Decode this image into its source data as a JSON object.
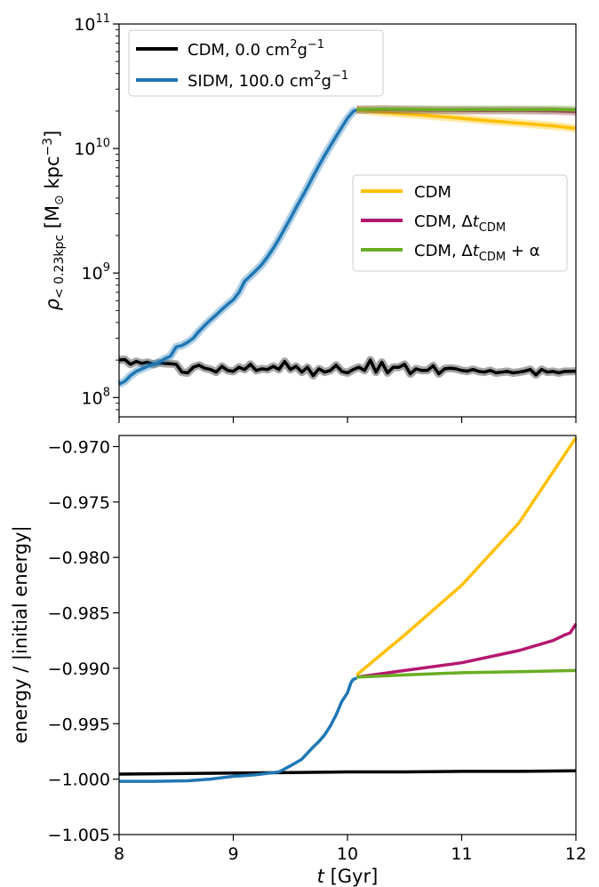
{
  "chart_data": [
    {
      "type": "line",
      "yscale": "log",
      "xlim": [
        8,
        12
      ],
      "ylim": [
        70000000,
        100000000000
      ],
      "xlabel": "",
      "ylabel": "ρ < 0.23kpc [M⊙ kpc−3]",
      "ylabel_parts": {
        "rho": "ρ",
        "sub": "< 0.23kpc",
        "unit_open": " [M",
        "sun": "⊙",
        "unit_mid": " kpc",
        "sup": "−3",
        "unit_close": "]"
      },
      "yticks": [
        {
          "base": "10",
          "exp": "8",
          "value": 100000000
        },
        {
          "base": "10",
          "exp": "9",
          "value": 1000000000
        },
        {
          "base": "10",
          "exp": "10",
          "value": 10000000000
        },
        {
          "base": "10",
          "exp": "11",
          "value": 100000000000
        }
      ],
      "legend_top_left": [
        {
          "name": "CDM, 0.0 cm²g⁻¹",
          "parts": {
            "main": "CDM, 0.0 cm",
            "sup1": "2",
            "mid": "g",
            "sup2": "−1"
          },
          "color": "#000000"
        },
        {
          "name": "SIDM, 100.0 cm²g⁻¹",
          "parts": {
            "main": "SIDM, 100.0 cm",
            "sup1": "2",
            "mid": "g",
            "sup2": "−1"
          },
          "color": "#1f77b4"
        }
      ],
      "legend_center_right": [
        {
          "name": "CDM",
          "parts": {
            "main": "CDM",
            "delta": "",
            "sub": "",
            "tail": ""
          },
          "color": "#ffc000"
        },
        {
          "name": "CDM, ΔtCDM",
          "parts": {
            "main": "CDM, Δ",
            "delta": "t",
            "sub": "CDM",
            "tail": ""
          },
          "color": "#b5176f"
        },
        {
          "name": "CDM, ΔtCDM + α",
          "parts": {
            "main": "CDM, Δ",
            "delta": "t",
            "sub": "CDM",
            "tail": " + α"
          },
          "color": "#6aad24"
        }
      ],
      "series": [
        {
          "name": "CDM, 0.0 cm²g⁻¹",
          "color": "#000000",
          "x": [
            8.0,
            8.05,
            8.1,
            8.15,
            8.2,
            8.25,
            8.3,
            8.35,
            8.4,
            8.45,
            8.5,
            8.55,
            8.6,
            8.65,
            8.7,
            8.75,
            8.8,
            8.85,
            8.9,
            8.95,
            9.0,
            9.05,
            9.1,
            9.15,
            9.2,
            9.25,
            9.3,
            9.35,
            9.4,
            9.45,
            9.5,
            9.55,
            9.6,
            9.65,
            9.7,
            9.75,
            9.8,
            9.85,
            9.9,
            9.95,
            10.0,
            10.05,
            10.1,
            10.15,
            10.2,
            10.25,
            10.3,
            10.35,
            10.4,
            10.45,
            10.5,
            10.55,
            10.6,
            10.65,
            10.7,
            10.75,
            10.8,
            10.85,
            10.9,
            10.95,
            11.0,
            11.05,
            11.1,
            11.15,
            11.2,
            11.25,
            11.3,
            11.35,
            11.4,
            11.45,
            11.5,
            11.55,
            11.6,
            11.65,
            11.7,
            11.75,
            11.8,
            11.85,
            11.9,
            11.95,
            12.0
          ],
          "y": [
            200000000,
            202000000,
            185000000,
            195000000,
            188000000,
            192000000,
            185000000,
            190000000,
            188000000,
            187000000,
            185000000,
            160000000,
            158000000,
            175000000,
            182000000,
            172000000,
            168000000,
            160000000,
            178000000,
            165000000,
            162000000,
            175000000,
            168000000,
            185000000,
            165000000,
            170000000,
            168000000,
            178000000,
            168000000,
            195000000,
            168000000,
            178000000,
            160000000,
            175000000,
            150000000,
            170000000,
            160000000,
            165000000,
            182000000,
            162000000,
            158000000,
            168000000,
            175000000,
            165000000,
            200000000,
            160000000,
            192000000,
            158000000,
            175000000,
            175000000,
            185000000,
            155000000,
            170000000,
            165000000,
            165000000,
            180000000,
            155000000,
            170000000,
            172000000,
            170000000,
            165000000,
            163000000,
            168000000,
            162000000,
            160000000,
            165000000,
            158000000,
            160000000,
            162000000,
            158000000,
            160000000,
            163000000,
            168000000,
            152000000,
            168000000,
            160000000,
            162000000,
            158000000,
            162000000,
            162000000,
            163000000
          ]
        },
        {
          "name": "SIDM, 100.0 cm²g⁻¹",
          "color": "#1f77b4",
          "x": [
            8.0,
            8.05,
            8.1,
            8.15,
            8.2,
            8.25,
            8.3,
            8.35,
            8.4,
            8.45,
            8.5,
            8.55,
            8.6,
            8.65,
            8.7,
            8.75,
            8.8,
            8.85,
            8.9,
            8.95,
            9.0,
            9.05,
            9.1,
            9.15,
            9.2,
            9.25,
            9.3,
            9.35,
            9.4,
            9.45,
            9.5,
            9.55,
            9.6,
            9.65,
            9.7,
            9.75,
            9.8,
            9.85,
            9.9,
            9.95,
            10.0,
            10.05,
            10.08
          ],
          "y": [
            128000000,
            135000000,
            150000000,
            162000000,
            170000000,
            178000000,
            185000000,
            192000000,
            205000000,
            215000000,
            255000000,
            262000000,
            278000000,
            300000000,
            340000000,
            380000000,
            420000000,
            460000000,
            510000000,
            560000000,
            610000000,
            700000000,
            860000000,
            950000000,
            1050000000,
            1170000000,
            1350000000,
            1580000000,
            1880000000,
            2270000000,
            2750000000,
            3350000000,
            4050000000,
            4900000000,
            6000000000,
            7300000000,
            8800000000,
            10500000000,
            12500000000,
            14800000000,
            17500000000,
            19800000000,
            20500000000
          ]
        },
        {
          "name": "CDM",
          "color": "#ffc000",
          "x": [
            10.08,
            10.3,
            10.6,
            10.9,
            11.2,
            11.5,
            11.8,
            12.0
          ],
          "y": [
            20500000000,
            19500000000,
            18700000000,
            17800000000,
            16800000000,
            16000000000,
            15200000000,
            14500000000
          ]
        },
        {
          "name": "CDM, ΔtCDM",
          "color": "#b5176f",
          "x": [
            10.08,
            10.3,
            10.6,
            10.9,
            11.2,
            11.5,
            11.8,
            12.0
          ],
          "y": [
            20500000000,
            20600000000,
            20400000000,
            20300000000,
            20200000000,
            20300000000,
            20100000000,
            19800000000
          ]
        },
        {
          "name": "CDM, ΔtCDM + α",
          "color": "#6aad24",
          "x": [
            10.08,
            10.3,
            10.6,
            10.9,
            11.2,
            11.5,
            11.8,
            12.0
          ],
          "y": [
            20500000000,
            20700000000,
            20600000000,
            20500000000,
            20600000000,
            20500000000,
            20600000000,
            20400000000
          ]
        }
      ]
    },
    {
      "type": "line",
      "xlim": [
        8,
        12
      ],
      "ylim": [
        -1.005,
        -0.969
      ],
      "xlabel": "t [Gyr]",
      "xlabel_parts": {
        "var": "t",
        "unit": " [Gyr]"
      },
      "ylabel": "energy / |initial energy|",
      "xticks": [
        "8",
        "9",
        "10",
        "11",
        "12"
      ],
      "yticks": [
        "−0.970",
        "−0.975",
        "−0.980",
        "−0.985",
        "−0.990",
        "−0.995",
        "−1.000",
        "−1.005"
      ],
      "ytick_values": [
        -0.97,
        -0.975,
        -0.98,
        -0.985,
        -0.99,
        -0.995,
        -1.0,
        -1.005
      ],
      "series": [
        {
          "name": "CDM, 0.0 cm²g⁻¹",
          "color": "#000000",
          "x": [
            8.0,
            8.5,
            9.0,
            9.5,
            10.0,
            10.5,
            11.0,
            11.5,
            12.0
          ],
          "y": [
            -0.99955,
            -0.9995,
            -0.99945,
            -0.9994,
            -0.99935,
            -0.99935,
            -0.9993,
            -0.9993,
            -0.99925
          ]
        },
        {
          "name": "SIDM, 100.0 cm²g⁻¹",
          "color": "#1f77b4",
          "x": [
            8.0,
            8.3,
            8.6,
            8.8,
            9.0,
            9.2,
            9.4,
            9.5,
            9.6,
            9.7,
            9.75,
            9.8,
            9.85,
            9.9,
            9.95,
            10.0,
            10.03,
            10.05,
            10.08
          ],
          "y": [
            -1.0002,
            -1.0002,
            -1.00015,
            -1.0,
            -0.99975,
            -0.9996,
            -0.99935,
            -0.9988,
            -0.9982,
            -0.9971,
            -0.9966,
            -0.996,
            -0.9952,
            -0.9942,
            -0.993,
            -0.9922,
            -0.9913,
            -0.991,
            -0.9909
          ]
        },
        {
          "name": "CDM",
          "color": "#ffc000",
          "x": [
            10.08,
            10.5,
            11.0,
            11.5,
            12.0
          ],
          "y": [
            -0.9906,
            -0.987,
            -0.9825,
            -0.9769,
            -0.9692
          ]
        },
        {
          "name": "CDM, ΔtCDM",
          "color": "#b5176f",
          "x": [
            10.08,
            10.5,
            11.0,
            11.5,
            11.8,
            11.9,
            11.95,
            12.0
          ],
          "y": [
            -0.9908,
            -0.9902,
            -0.9895,
            -0.9884,
            -0.9875,
            -0.987,
            -0.9868,
            -0.986
          ]
        },
        {
          "name": "CDM, ΔtCDM + α",
          "color": "#6aad24",
          "x": [
            10.08,
            10.5,
            11.0,
            11.5,
            12.0
          ],
          "y": [
            -0.9908,
            -0.9906,
            -0.9904,
            -0.9903,
            -0.9902
          ]
        }
      ]
    }
  ]
}
